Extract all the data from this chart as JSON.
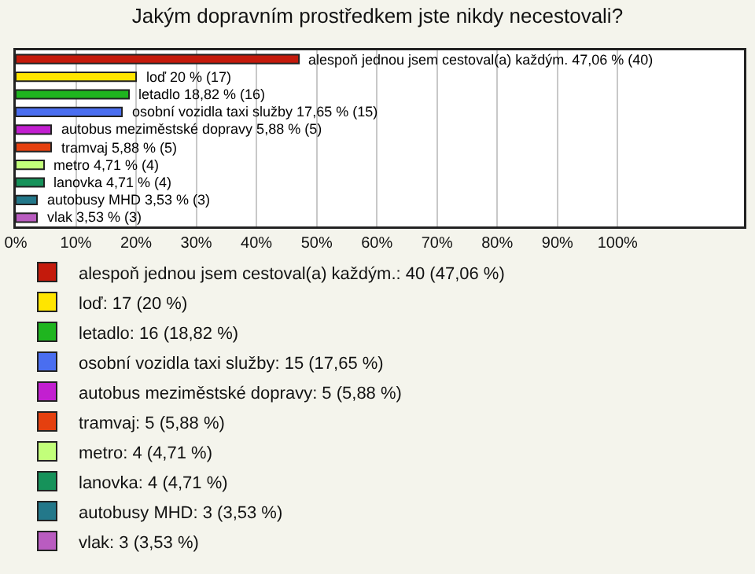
{
  "chart_data": {
    "type": "bar",
    "orientation": "horizontal",
    "title": "Jakým dopravním prostředkem jste nikdy necestovali?",
    "categories": [
      null,
      null,
      null,
      null,
      null,
      null,
      null,
      null,
      null,
      null
    ],
    "xlim": [
      0,
      121
    ],
    "xticks": [
      {
        "value": 0,
        "label": "0%"
      },
      {
        "value": 10,
        "label": "10%"
      },
      {
        "value": 20,
        "label": "20%"
      },
      {
        "value": 30,
        "label": "30%"
      },
      {
        "value": 40,
        "label": "40%"
      },
      {
        "value": 50,
        "label": "50%"
      },
      {
        "value": 60,
        "label": "60%"
      },
      {
        "value": 70,
        "label": "70%"
      },
      {
        "value": 80,
        "label": "80%"
      },
      {
        "value": 90,
        "label": "90%"
      },
      {
        "value": 100,
        "label": "100%"
      }
    ],
    "grid": "x",
    "legend": "bottom",
    "tick_labels": "x",
    "series": [
      {
        "name": "alespoň jednou jsem cestoval(a) každým.: 40 (47,06 %)",
        "color": "#c41a0c",
        "values": [
          47.06,
          null,
          null,
          null,
          null,
          null,
          null,
          null,
          null,
          null
        ],
        "value_labels": [
          "alespoň jednou jsem cestoval(a) každým. 47,06 % (40)",
          null,
          null,
          null,
          null,
          null,
          null,
          null,
          null,
          null
        ]
      },
      {
        "name": "loď: 17 (20 %)",
        "color": "#ffe500",
        "values": [
          null,
          20,
          null,
          null,
          null,
          null,
          null,
          null,
          null,
          null
        ],
        "value_labels": [
          null,
          "loď 20 % (17)",
          null,
          null,
          null,
          null,
          null,
          null,
          null,
          null
        ]
      },
      {
        "name": "letadlo: 16 (18,82 %)",
        "color": "#1fb51f",
        "values": [
          null,
          null,
          18.82,
          null,
          null,
          null,
          null,
          null,
          null,
          null
        ],
        "value_labels": [
          null,
          null,
          "letadlo 18,82 % (16)",
          null,
          null,
          null,
          null,
          null,
          null,
          null
        ]
      },
      {
        "name": "osobní vozidla taxi služby: 15 (17,65 %)",
        "color": "#4a6ef0",
        "values": [
          null,
          null,
          null,
          17.65,
          null,
          null,
          null,
          null,
          null,
          null
        ],
        "value_labels": [
          null,
          null,
          null,
          "osobní vozidla taxi služby 17,65 % (15)",
          null,
          null,
          null,
          null,
          null,
          null
        ]
      },
      {
        "name": "autobus meziměstské dopravy: 5 (5,88 %)",
        "color": "#c21fd0",
        "values": [
          null,
          null,
          null,
          null,
          5.88,
          null,
          null,
          null,
          null,
          null
        ],
        "value_labels": [
          null,
          null,
          null,
          null,
          "autobus meziměstské dopravy 5,88 % (5)",
          null,
          null,
          null,
          null,
          null
        ]
      },
      {
        "name": "tramvaj: 5 (5,88 %)",
        "color": "#e5400f",
        "values": [
          null,
          null,
          null,
          null,
          null,
          5.88,
          null,
          null,
          null,
          null
        ],
        "value_labels": [
          null,
          null,
          null,
          null,
          null,
          "tramvaj 5,88 % (5)",
          null,
          null,
          null,
          null
        ]
      },
      {
        "name": "metro: 4 (4,71 %)",
        "color": "#c2ff7a",
        "values": [
          null,
          null,
          null,
          null,
          null,
          null,
          4.71,
          null,
          null,
          null
        ],
        "value_labels": [
          null,
          null,
          null,
          null,
          null,
          null,
          "metro 4,71 % (4)",
          null,
          null,
          null
        ]
      },
      {
        "name": "lanovka: 4 (4,71 %)",
        "color": "#16925a",
        "values": [
          null,
          null,
          null,
          null,
          null,
          null,
          null,
          4.71,
          null,
          null
        ],
        "value_labels": [
          null,
          null,
          null,
          null,
          null,
          null,
          null,
          "lanovka 4,71 % (4)",
          null,
          null
        ]
      },
      {
        "name": "autobusy MHD: 3 (3,53 %)",
        "color": "#23788a",
        "values": [
          null,
          null,
          null,
          null,
          null,
          null,
          null,
          null,
          3.53,
          null
        ],
        "value_labels": [
          null,
          null,
          null,
          null,
          null,
          null,
          null,
          null,
          "autobusy MHD 3,53 % (3)",
          null
        ]
      },
      {
        "name": "vlak: 3 (3,53 %)",
        "color": "#b95cc0",
        "values": [
          null,
          null,
          null,
          null,
          null,
          null,
          null,
          null,
          null,
          3.53
        ],
        "value_labels": [
          null,
          null,
          null,
          null,
          null,
          null,
          null,
          null,
          null,
          "vlak 3,53 % (3)"
        ]
      }
    ]
  }
}
